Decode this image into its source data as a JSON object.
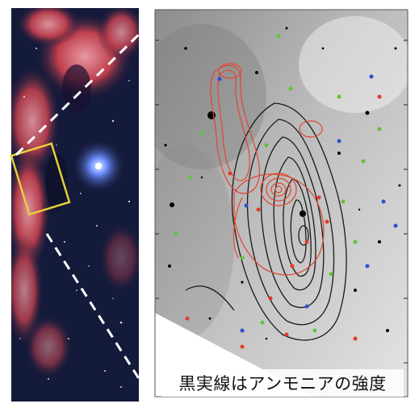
{
  "figure": {
    "caption": "黒実線はアンモニアの強度",
    "colors": {
      "nebula_red": "#d9505a",
      "background_space": "#141a3a",
      "highlight_box": "#e6cf3a",
      "ammonia_contour": "#1a1a1a",
      "overlay_contour": "#e2462e",
      "guide_lines": "#ffffff",
      "marker_green": "#5fc23c",
      "marker_red": "#e23a2a",
      "marker_blue": "#2f4fcf"
    }
  }
}
